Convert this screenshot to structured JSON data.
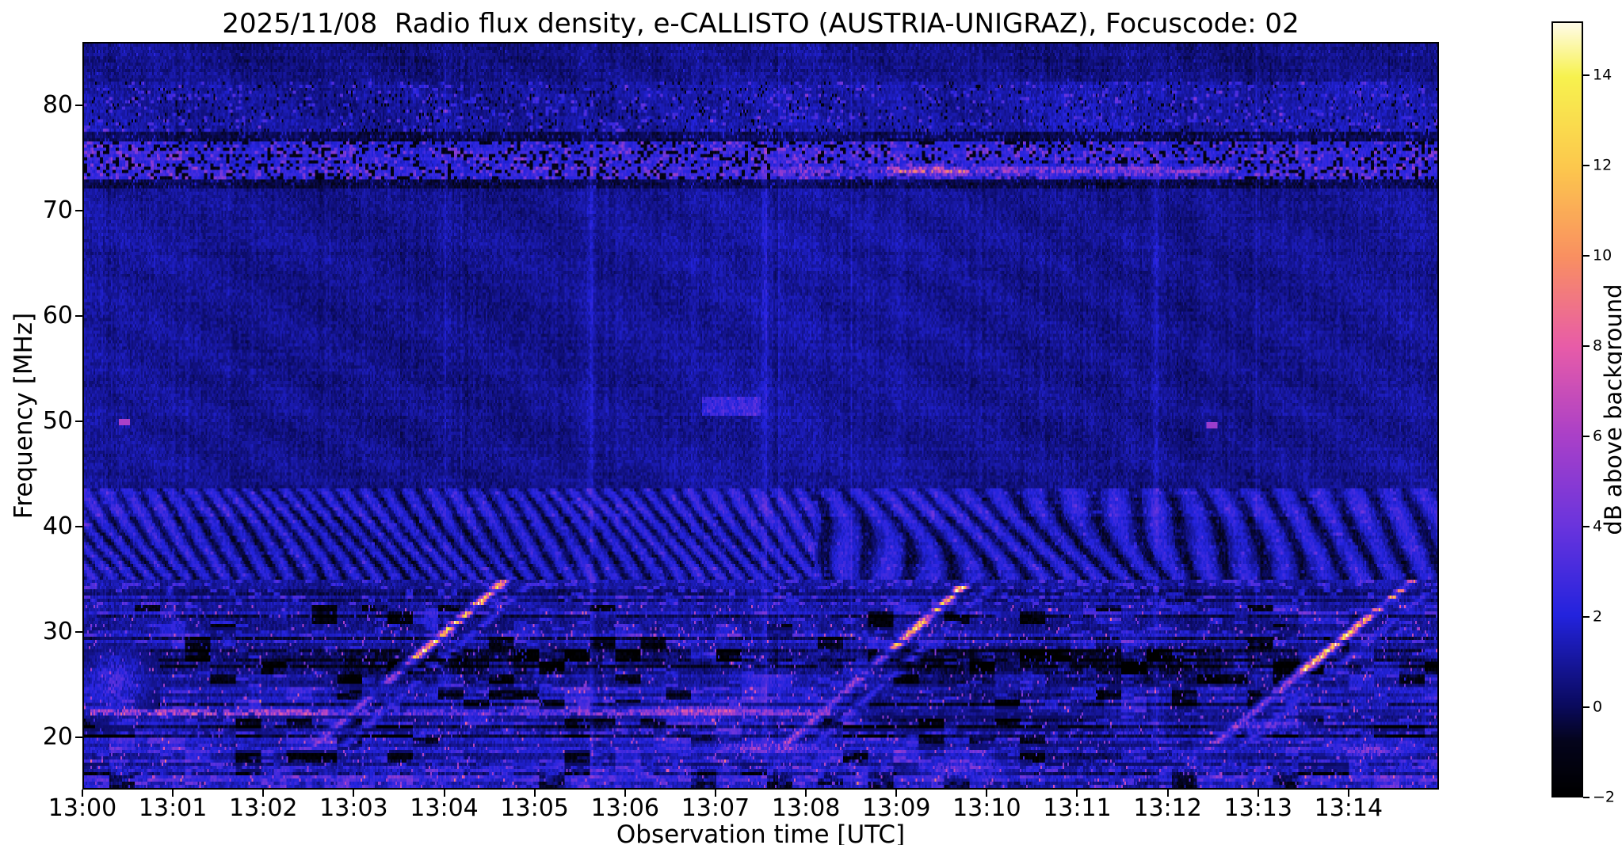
{
  "figure": {
    "title": "2025/11/08  Radio flux density, e-CALLISTO (AUSTRIA-UNIGRAZ), Focuscode: 02",
    "xlabel": "Observation time [UTC]",
    "ylabel": "Frequency [MHz]",
    "colorbar_label": "dB above background"
  },
  "chart_data": {
    "type": "heatmap",
    "title": "2025/11/08  Radio flux density, e-CALLISTO (AUSTRIA-UNIGRAZ), Focuscode: 02",
    "date": "2025/11/08",
    "instrument": "e-CALLISTO (AUSTRIA-UNIGRAZ)",
    "focuscode": "02",
    "xlabel": "Observation time [UTC]",
    "ylabel": "Frequency [MHz]",
    "x_ticks": [
      "13:00",
      "13:01",
      "13:02",
      "13:03",
      "13:04",
      "13:05",
      "13:06",
      "13:07",
      "13:08",
      "13:09",
      "13:10",
      "13:11",
      "13:12",
      "13:13",
      "13:14"
    ],
    "x_range_minutes": [
      0,
      15
    ],
    "y_ticks": [
      80,
      70,
      60,
      50,
      40,
      30,
      20
    ],
    "freq_range_mhz": [
      15,
      86
    ],
    "colorbar": {
      "label": "dB above background",
      "ticks": [
        {
          "v": 14,
          "label": "14"
        },
        {
          "v": 12,
          "label": "12"
        },
        {
          "v": 10,
          "label": "10"
        },
        {
          "v": 8,
          "label": "8"
        },
        {
          "v": 6,
          "label": "6"
        },
        {
          "v": 4,
          "label": "4"
        },
        {
          "v": 2,
          "label": "2"
        },
        {
          "v": 0,
          "label": "0"
        },
        {
          "v": -2,
          "label": "−2"
        }
      ],
      "range": [
        -2,
        15.2
      ]
    },
    "colormap_stops": [
      [
        -2,
        "#000000"
      ],
      [
        -0.8,
        "#04041c"
      ],
      [
        0,
        "#0a0a5e"
      ],
      [
        2,
        "#2323dd"
      ],
      [
        4,
        "#6a34dd"
      ],
      [
        6,
        "#aa40c8"
      ],
      [
        8,
        "#e85ca8"
      ],
      [
        10,
        "#f99061"
      ],
      [
        12,
        "#fcc84d"
      ],
      [
        14,
        "#f7f24e"
      ],
      [
        15.2,
        "#fffbe8"
      ]
    ],
    "features": {
      "bursts": [
        {
          "name": "type-III-burst-1",
          "start_utc": "13:02:45",
          "end_utc": "13:04:37",
          "t_start": 2.75,
          "t_end": 4.62,
          "f_start": 20.5,
          "f_end": 34.5,
          "bright_from_f": 27
        },
        {
          "name": "type-III-burst-2",
          "start_utc": "13:07:57",
          "end_utc": "13:09:45",
          "t_start": 7.95,
          "t_end": 9.75,
          "f_start": 20.5,
          "f_end": 34.3,
          "bright_from_f": 28
        },
        {
          "name": "type-III-burst-3",
          "start_utc": "13:12:39",
          "end_utc": "13:14:42",
          "t_start": 12.65,
          "t_end": 14.7,
          "f_start": 20.0,
          "f_end": 34.6,
          "bright_from_f": 26
        }
      ],
      "horizontal_lines": [
        {
          "f": 22.2,
          "hw": 0.5,
          "gap": 0.25,
          "segments": [
            {
              "t": [
                0,
                2.7
              ],
              "v": 8.0
            },
            {
              "t": [
                2.7,
                5.3
              ],
              "v": 4.5
            },
            {
              "t": [
                5.3,
                8.35
              ],
              "v": 6.5
            },
            {
              "t": [
                8.35,
                15
              ],
              "v": 1.2
            }
          ]
        },
        {
          "f": 20.3,
          "hw": 0.3,
          "gap": 0.45,
          "segments": [
            {
              "t": [
                0,
                15
              ],
              "v": 2.6
            }
          ]
        },
        {
          "f": 18.8,
          "hw": 0.4,
          "gap": 0.5,
          "segments": [
            {
              "t": [
                0,
                15
              ],
              "v": 2.0
            }
          ]
        },
        {
          "f": 16.9,
          "hw": 0.4,
          "gap": 0.5,
          "segments": [
            {
              "t": [
                0,
                15
              ],
              "v": 2.2
            }
          ]
        },
        {
          "f": 24.6,
          "hw": 0.3,
          "gap": 0.6,
          "segments": [
            {
              "t": [
                0,
                15
              ],
              "v": 1.8
            }
          ]
        },
        {
          "f": 29.8,
          "hw": 0.4,
          "gap": 0.55,
          "segments": [
            {
              "t": [
                0,
                15
              ],
              "v": 2.2
            }
          ]
        },
        {
          "f": 73.9,
          "hw": 0.8,
          "gap": 0.35,
          "segments": [
            {
              "t": [
                7.6,
                8.9
              ],
              "v": 4.5
            },
            {
              "t": [
                8.9,
                9.8
              ],
              "v": 8.5
            },
            {
              "t": [
                9.8,
                12.8
              ],
              "v": 5.5
            }
          ]
        }
      ],
      "blobs": [
        {
          "t": 7.6,
          "f": 18.8,
          "rt": 0.7,
          "rf": 0.6,
          "v": 5.5
        },
        {
          "t": 9.75,
          "f": 16.9,
          "rt": 0.5,
          "rf": 0.9,
          "v": 4.0
        },
        {
          "t": 14.25,
          "f": 18.6,
          "rt": 0.5,
          "rf": 0.7,
          "v": 4.5
        },
        {
          "t": 6.9,
          "f": 22.3,
          "rt": 0.9,
          "rf": 0.5,
          "v": 7.0
        },
        {
          "t": 13.1,
          "f": 21.0,
          "rt": 0.4,
          "rf": 0.5,
          "v": 4.5
        },
        {
          "t": 0.35,
          "f": 25.0,
          "rt": 0.35,
          "rf": 3.0,
          "v": 3.0
        }
      ],
      "dots": [
        {
          "t": 0.45,
          "f": 49.9,
          "v": 6.0
        },
        {
          "t": 12.5,
          "f": 49.6,
          "v": 5.5
        }
      ],
      "dark_patches": [
        {
          "t": [
            8.5,
            11.3
          ],
          "f": [
            20.4,
            24.6
          ],
          "d": 1.2
        },
        {
          "t": [
            2.9,
            5.0
          ],
          "f": [
            25.0,
            28.2
          ],
          "d": 0.9
        },
        {
          "t": [
            9.0,
            12.6
          ],
          "f": [
            24.6,
            28.4
          ],
          "d": 1.0
        },
        {
          "t": [
            0,
            15
          ],
          "f": [
            25.4,
            28.0
          ],
          "d": 0.6
        },
        {
          "t": [
            10.0,
            12.3
          ],
          "f": [
            15.0,
            19.6
          ],
          "d": 0.9
        }
      ],
      "short_lines": [
        {
          "t": [
            6.85,
            7.5
          ],
          "f": [
            50.6,
            52.3
          ],
          "boost": 1.9
        }
      ],
      "vertical_lines": [
        5.62,
        7.55,
        11.88
      ],
      "rfi_bands": [
        {
          "f": [
            73.0,
            76.6
          ],
          "desc": "strong broadcast RFI band, blue with black dropouts"
        },
        {
          "f": [
            77.5,
            82.5
          ],
          "desc": "speckled interference band"
        },
        {
          "f": [
            35.0,
            43.5
          ],
          "desc": "diagonal ripple / herringbone interference"
        },
        {
          "f": [
            15.0,
            32.5
          ],
          "desc": "dense shortwave RFI, mottled"
        }
      ]
    }
  }
}
